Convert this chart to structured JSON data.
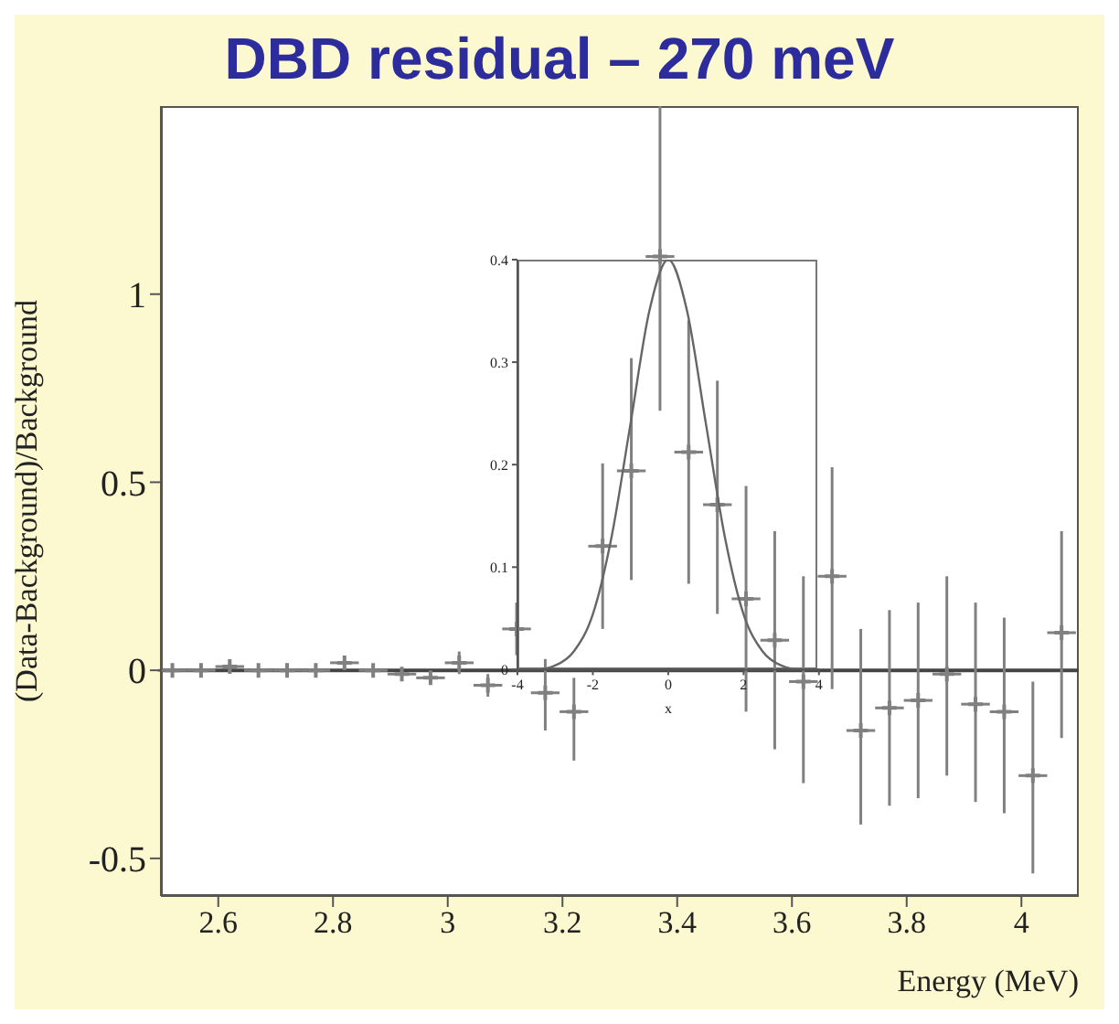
{
  "chart_data": [
    {
      "type": "scatter",
      "title": "DBD residual – 270 meV",
      "xlabel": "Energy (MeV)",
      "ylabel": "(Data-Background)/Background",
      "xlim": [
        2.5,
        4.1
      ],
      "ylim": [
        -0.6,
        1.5
      ],
      "xticks": [
        2.6,
        2.8,
        3,
        3.2,
        3.4,
        3.6,
        3.8,
        4
      ],
      "yticks": [
        -0.5,
        0,
        0.5,
        1
      ],
      "ref_lines": [
        {
          "axis": "y",
          "value": 0,
          "color": "#444444"
        }
      ],
      "marker": "cross",
      "grid": false,
      "legend": false,
      "series": [
        {
          "color": "#808080",
          "x": [
            2.52,
            2.57,
            2.62,
            2.67,
            2.72,
            2.77,
            2.82,
            2.87,
            2.92,
            2.97,
            3.02,
            3.07,
            3.12,
            3.17,
            3.22,
            3.27,
            3.32,
            3.37,
            3.42,
            3.47,
            3.52,
            3.57,
            3.62,
            3.67,
            3.72,
            3.77,
            3.82,
            3.87,
            3.92,
            3.97,
            4.02,
            4.07
          ],
          "values": [
            0,
            0,
            0.01,
            0,
            0,
            0,
            0.02,
            0,
            -0.01,
            -0.02,
            0.02,
            -0.04,
            0.11,
            -0.06,
            -0.11,
            0.33,
            0.53,
            1.1,
            0.58,
            0.44,
            0.19,
            0.08,
            -0.03,
            0.25,
            -0.16,
            -0.1,
            -0.08,
            -0.01,
            -0.09,
            -0.11,
            -0.28,
            0.1
          ],
          "errors": [
            0.01,
            0.01,
            0.01,
            0.01,
            0.01,
            0.01,
            0.01,
            0.01,
            0.01,
            0.01,
            0.03,
            0.03,
            [
              0.04,
              0.18
            ],
            [
              -0.16,
              0.03
            ],
            [
              -0.24,
              -0.02
            ],
            [
              0.11,
              0.55
            ],
            [
              0.24,
              0.83
            ],
            [
              0.69,
              1.5
            ],
            [
              0.23,
              0.93
            ],
            [
              0.15,
              0.77
            ],
            [
              -0.11,
              0.49
            ],
            [
              -0.21,
              0.37
            ],
            [
              -0.3,
              0.25
            ],
            [
              -0.05,
              0.54
            ],
            [
              -0.41,
              0.11
            ],
            [
              -0.36,
              0.16
            ],
            [
              -0.34,
              0.18
            ],
            [
              -0.28,
              0.25
            ],
            [
              -0.35,
              0.18
            ],
            [
              -0.38,
              0.14
            ],
            [
              -0.54,
              -0.03
            ],
            [
              -0.18,
              0.37
            ]
          ],
          "xerrors": [
            0.025,
            0.025,
            0.025,
            0.025,
            0.025,
            0.025,
            0.025,
            0.025,
            0.025,
            0.025,
            0.025,
            0.025,
            0.025,
            0.025,
            0.025,
            0.025,
            0.025,
            0.025,
            0.025,
            0.025,
            0.025,
            0.025,
            0.025,
            0.025,
            0.025,
            0.025,
            0.025,
            0.025,
            0.025,
            0.025,
            0.025,
            0.025
          ]
        }
      ]
    },
    {
      "type": "line",
      "xlabel": "x",
      "xlim": [
        -4,
        4
      ],
      "ylim": [
        0,
        0.4
      ],
      "xticks": [
        -4,
        -2,
        0,
        2,
        4
      ],
      "yticks": [
        0,
        0.1,
        0.2,
        0.3,
        0.4
      ],
      "marker": "none",
      "grid": false,
      "legend": false,
      "series": [
        {
          "color": "#666666",
          "x": [
            -4,
            -3.5,
            -3,
            -2.5,
            -2,
            -1.5,
            -1,
            -0.5,
            0,
            0.5,
            1,
            1.5,
            2,
            2.5,
            3,
            3.5,
            4
          ],
          "values": [
            0,
            0,
            0.004,
            0.018,
            0.054,
            0.13,
            0.24,
            0.35,
            0.4,
            0.35,
            0.24,
            0.13,
            0.054,
            0.018,
            0.004,
            0,
            0
          ]
        }
      ]
    }
  ]
}
